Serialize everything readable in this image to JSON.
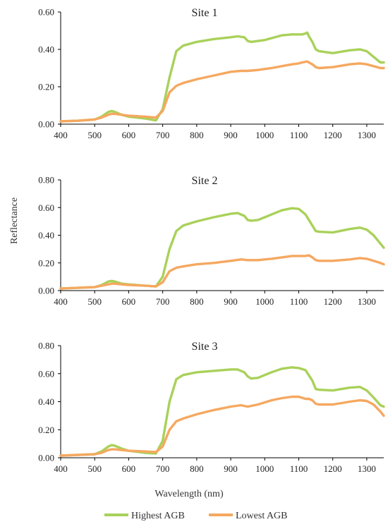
{
  "chart_data": [
    {
      "type": "line",
      "title": "Site 1",
      "xlim": [
        400,
        1350
      ],
      "ylim": [
        0,
        0.6
      ],
      "xticks": [
        "400",
        "500",
        "600",
        "700",
        "800",
        "900",
        "1000",
        "1100",
        "1200",
        "1300"
      ],
      "yticks": [
        "0.00",
        "0.20",
        "0.40",
        "0.60"
      ],
      "series": [
        {
          "name": "Highest AGB",
          "color": "#A9D15A",
          "x": [
            400,
            450,
            500,
            520,
            540,
            550,
            560,
            580,
            600,
            650,
            680,
            700,
            720,
            740,
            760,
            800,
            850,
            900,
            920,
            940,
            950,
            960,
            980,
            1000,
            1020,
            1050,
            1080,
            1100,
            1110,
            1120,
            1125,
            1130,
            1140,
            1150,
            1160,
            1200,
            1250,
            1280,
            1300,
            1320,
            1340,
            1350
          ],
          "y": [
            0.015,
            0.018,
            0.025,
            0.04,
            0.065,
            0.07,
            0.065,
            0.05,
            0.04,
            0.03,
            0.02,
            0.08,
            0.25,
            0.39,
            0.42,
            0.44,
            0.455,
            0.465,
            0.47,
            0.465,
            0.445,
            0.44,
            0.445,
            0.45,
            0.46,
            0.475,
            0.48,
            0.48,
            0.48,
            0.485,
            0.49,
            0.47,
            0.44,
            0.4,
            0.39,
            0.38,
            0.395,
            0.4,
            0.39,
            0.36,
            0.33,
            0.33
          ]
        },
        {
          "name": "Lowest AGB",
          "color": "#F5A860",
          "x": [
            400,
            450,
            500,
            520,
            540,
            550,
            560,
            580,
            600,
            650,
            680,
            700,
            720,
            740,
            760,
            800,
            850,
            900,
            930,
            950,
            980,
            1000,
            1020,
            1050,
            1080,
            1100,
            1110,
            1125,
            1140,
            1150,
            1160,
            1200,
            1250,
            1280,
            1300,
            1320,
            1340,
            1350
          ],
          "y": [
            0.015,
            0.018,
            0.025,
            0.035,
            0.05,
            0.055,
            0.055,
            0.05,
            0.045,
            0.04,
            0.035,
            0.07,
            0.17,
            0.205,
            0.22,
            0.24,
            0.26,
            0.28,
            0.285,
            0.285,
            0.29,
            0.295,
            0.3,
            0.31,
            0.32,
            0.325,
            0.33,
            0.335,
            0.32,
            0.305,
            0.3,
            0.305,
            0.32,
            0.325,
            0.32,
            0.31,
            0.3,
            0.3
          ]
        }
      ]
    },
    {
      "type": "line",
      "title": "Site 2",
      "ylabel": "Reflectance",
      "xlim": [
        400,
        1350
      ],
      "ylim": [
        0,
        0.8
      ],
      "xticks": [
        "400",
        "500",
        "600",
        "700",
        "800",
        "900",
        "1000",
        "1100",
        "1200",
        "1300"
      ],
      "yticks": [
        "0.00",
        "0.20",
        "0.40",
        "0.60",
        "0.80"
      ],
      "series": [
        {
          "name": "Highest AGB",
          "color": "#A9D15A",
          "x": [
            400,
            450,
            500,
            520,
            540,
            550,
            560,
            580,
            600,
            650,
            680,
            700,
            720,
            740,
            760,
            800,
            850,
            900,
            920,
            940,
            950,
            960,
            980,
            1000,
            1020,
            1050,
            1080,
            1100,
            1120,
            1140,
            1150,
            1160,
            1200,
            1250,
            1280,
            1300,
            1320,
            1340,
            1350
          ],
          "y": [
            0.015,
            0.02,
            0.025,
            0.04,
            0.065,
            0.07,
            0.065,
            0.05,
            0.045,
            0.035,
            0.03,
            0.1,
            0.3,
            0.43,
            0.47,
            0.5,
            0.53,
            0.555,
            0.56,
            0.54,
            0.51,
            0.505,
            0.51,
            0.53,
            0.55,
            0.58,
            0.595,
            0.59,
            0.55,
            0.47,
            0.43,
            0.425,
            0.42,
            0.445,
            0.455,
            0.44,
            0.4,
            0.34,
            0.31
          ]
        },
        {
          "name": "Lowest AGB",
          "color": "#F5A860",
          "x": [
            400,
            450,
            500,
            520,
            540,
            550,
            560,
            580,
            600,
            650,
            680,
            700,
            720,
            740,
            760,
            800,
            850,
            900,
            930,
            950,
            980,
            1000,
            1020,
            1050,
            1080,
            1100,
            1120,
            1130,
            1140,
            1150,
            1160,
            1200,
            1250,
            1280,
            1300,
            1320,
            1340,
            1350
          ],
          "y": [
            0.015,
            0.02,
            0.025,
            0.035,
            0.045,
            0.05,
            0.05,
            0.045,
            0.04,
            0.035,
            0.03,
            0.06,
            0.14,
            0.165,
            0.175,
            0.19,
            0.2,
            0.215,
            0.225,
            0.22,
            0.22,
            0.225,
            0.23,
            0.24,
            0.25,
            0.25,
            0.25,
            0.255,
            0.24,
            0.22,
            0.215,
            0.215,
            0.225,
            0.235,
            0.23,
            0.215,
            0.2,
            0.19
          ]
        }
      ]
    },
    {
      "type": "line",
      "title": "Site 3",
      "xlabel": "Wavelength (nm)",
      "xlim": [
        400,
        1350
      ],
      "ylim": [
        0,
        0.8
      ],
      "xticks": [
        "400",
        "500",
        "600",
        "700",
        "800",
        "900",
        "1000",
        "1100",
        "1200",
        "1300"
      ],
      "yticks": [
        "0.00",
        "0.20",
        "0.40",
        "0.60",
        "0.80"
      ],
      "series": [
        {
          "name": "Highest AGB",
          "color": "#A9D15A",
          "x": [
            400,
            450,
            500,
            520,
            540,
            550,
            560,
            580,
            600,
            650,
            680,
            700,
            720,
            740,
            760,
            800,
            850,
            900,
            920,
            940,
            950,
            960,
            980,
            1000,
            1020,
            1050,
            1080,
            1100,
            1120,
            1140,
            1150,
            1160,
            1200,
            1250,
            1280,
            1300,
            1320,
            1340,
            1350
          ],
          "y": [
            0.015,
            0.02,
            0.025,
            0.045,
            0.08,
            0.09,
            0.085,
            0.065,
            0.05,
            0.035,
            0.03,
            0.12,
            0.4,
            0.56,
            0.59,
            0.61,
            0.62,
            0.63,
            0.63,
            0.61,
            0.58,
            0.565,
            0.57,
            0.59,
            0.61,
            0.635,
            0.645,
            0.64,
            0.625,
            0.55,
            0.49,
            0.485,
            0.48,
            0.5,
            0.505,
            0.48,
            0.43,
            0.375,
            0.365
          ]
        },
        {
          "name": "Lowest AGB",
          "color": "#F5A860",
          "x": [
            400,
            450,
            500,
            520,
            540,
            550,
            560,
            580,
            600,
            650,
            680,
            700,
            720,
            740,
            760,
            800,
            850,
            900,
            930,
            950,
            980,
            1000,
            1020,
            1050,
            1080,
            1100,
            1120,
            1130,
            1140,
            1150,
            1160,
            1200,
            1250,
            1280,
            1300,
            1320,
            1340,
            1350
          ],
          "y": [
            0.015,
            0.02,
            0.025,
            0.035,
            0.055,
            0.06,
            0.06,
            0.055,
            0.05,
            0.045,
            0.04,
            0.08,
            0.2,
            0.26,
            0.28,
            0.31,
            0.34,
            0.365,
            0.375,
            0.365,
            0.38,
            0.395,
            0.41,
            0.425,
            0.435,
            0.435,
            0.42,
            0.42,
            0.41,
            0.385,
            0.38,
            0.38,
            0.4,
            0.41,
            0.405,
            0.38,
            0.33,
            0.3
          ]
        }
      ]
    }
  ],
  "legend": {
    "items": [
      {
        "label": "Highest AGB",
        "color": "#A9D15A"
      },
      {
        "label": "Lowest AGB",
        "color": "#F5A860"
      }
    ]
  }
}
